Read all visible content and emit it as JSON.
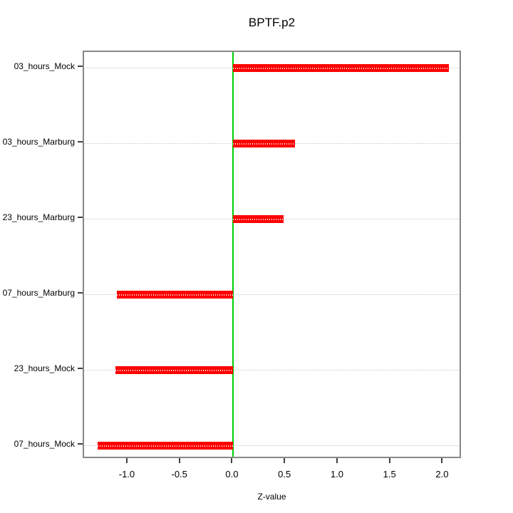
{
  "title": "BPTF.p2",
  "chart_data": {
    "type": "bar",
    "orientation": "horizontal",
    "title": "BPTF.p2",
    "xlabel": "Z-value",
    "ylabel": "",
    "categories": [
      "03_hours_Mock",
      "03_hours_Marburg",
      "23_hours_Marburg",
      "07_hours_Marburg",
      "23_hours_Mock",
      "07_hours_Mock"
    ],
    "values": [
      2.05,
      0.59,
      0.48,
      -1.11,
      -1.12,
      -1.29
    ],
    "x_ticks": [
      -1.0,
      -0.5,
      0.0,
      0.5,
      1.0,
      1.5,
      2.0
    ],
    "xlim": [
      -1.42,
      2.18
    ],
    "reference_line_x": 0.0,
    "grid": "dotted-horizontal",
    "legend": "none",
    "colors": {
      "bar": "#ff0000",
      "bar_dot_pattern": "#ffffff",
      "reference_line": "#00cd00",
      "grid_line": "#c8c8c8",
      "box_border": "#888888",
      "tick": "#404040",
      "text": "#000000",
      "background": "#ffffff"
    }
  }
}
